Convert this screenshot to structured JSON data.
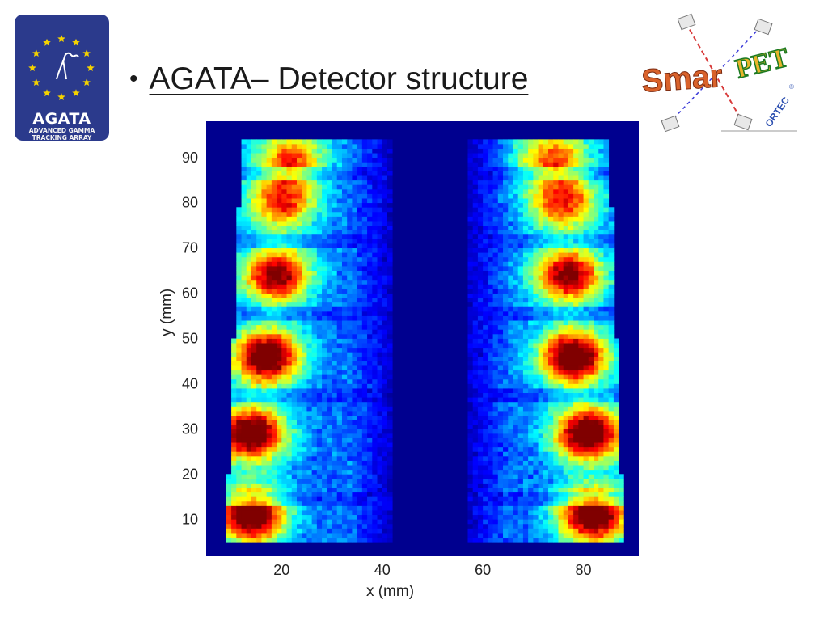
{
  "slide": {
    "bullet": "•",
    "title": "AGATA– Detector structure"
  },
  "logos": {
    "agata": {
      "word": "AGATA",
      "line1": "ADVANCED GAMMA",
      "line2": "TRACKING ARRAY",
      "color": "#2b3a8c",
      "star_color": "#f4d200"
    },
    "smartpet": {
      "word_part1": "Smar",
      "word_part2": "PET",
      "sub": "ORTEC",
      "reg": "®"
    }
  },
  "chart_data": {
    "type": "heatmap",
    "title": "",
    "xlabel": "x (mm)",
    "ylabel": "y (mm)",
    "xlim": [
      5,
      91
    ],
    "ylim": [
      2,
      98
    ],
    "xticks": [
      20,
      40,
      60,
      80
    ],
    "yticks": [
      10,
      20,
      30,
      40,
      50,
      60,
      70,
      80,
      90
    ],
    "colormap": "jet",
    "colors": {
      "background": "#00008f",
      "low": "#0040ff",
      "mid": "#00e0ff",
      "high": "#ff3000",
      "max": "#800000"
    },
    "segments": {
      "left_segment_x": [
        7,
        42
      ],
      "right_segment_x": [
        57,
        88
      ],
      "y_extent": [
        5,
        94
      ],
      "hotspots": [
        {
          "side": "left",
          "x": 14,
          "y": 11,
          "intensity": 1.0
        },
        {
          "side": "left",
          "x": 14,
          "y": 29,
          "intensity": 1.0
        },
        {
          "side": "left",
          "x": 17,
          "y": 46,
          "intensity": 1.0
        },
        {
          "side": "left",
          "x": 19,
          "y": 64,
          "intensity": 0.85
        },
        {
          "side": "left",
          "x": 20,
          "y": 80,
          "intensity": 0.65
        },
        {
          "side": "left",
          "x": 22,
          "y": 90,
          "intensity": 0.6
        },
        {
          "side": "right",
          "x": 82,
          "y": 11,
          "intensity": 1.0
        },
        {
          "side": "right",
          "x": 81,
          "y": 29,
          "intensity": 1.0
        },
        {
          "side": "right",
          "x": 78,
          "y": 46,
          "intensity": 1.0
        },
        {
          "side": "right",
          "x": 77,
          "y": 64,
          "intensity": 0.85
        },
        {
          "side": "right",
          "x": 76,
          "y": 80,
          "intensity": 0.65
        },
        {
          "side": "right",
          "x": 74,
          "y": 90,
          "intensity": 0.6
        }
      ]
    }
  }
}
